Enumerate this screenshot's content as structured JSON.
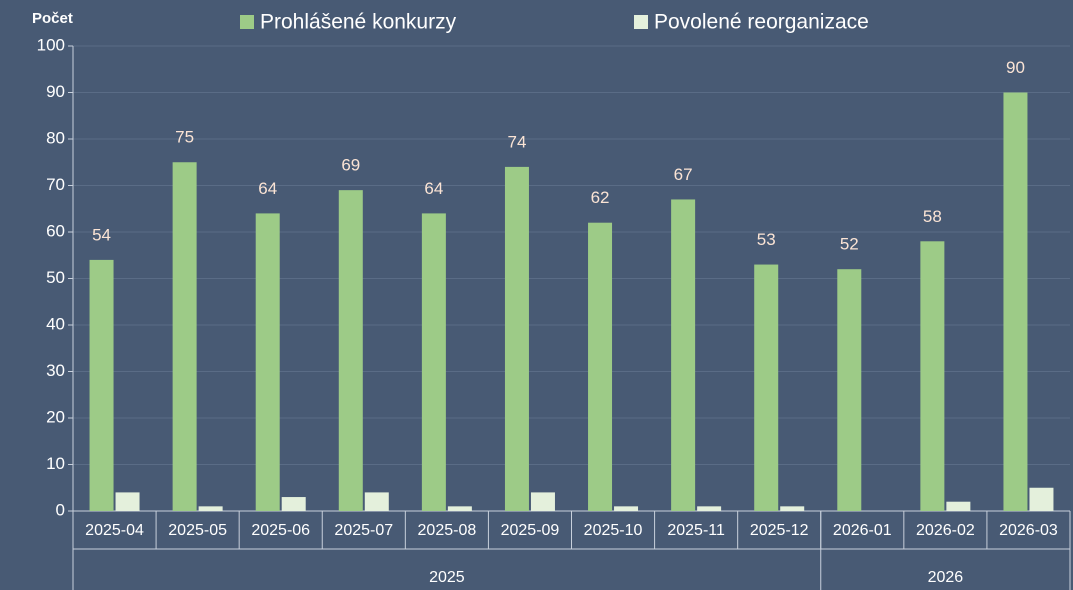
{
  "chart_data": {
    "type": "bar",
    "y_label": "Počet",
    "categories": [
      "2025-04",
      "2025-05",
      "2025-06",
      "2025-07",
      "2025-08",
      "2025-09",
      "2025-10",
      "2025-11",
      "2025-12",
      "2026-01",
      "2026-02",
      "2026-03"
    ],
    "groups": [
      {
        "label": "2025",
        "count": 9
      },
      {
        "label": "2026",
        "count": 3
      }
    ],
    "series": [
      {
        "name": "Prohlášené konkurzy",
        "color": "#9dcb87",
        "values": [
          54,
          75,
          64,
          69,
          64,
          74,
          62,
          67,
          53,
          52,
          58,
          90
        ],
        "data_labels": true
      },
      {
        "name": "Povolené reorganizace",
        "color": "#e4f0dc",
        "values": [
          4,
          1,
          3,
          4,
          1,
          4,
          1,
          1,
          1,
          0,
          2,
          5
        ],
        "data_labels": false
      }
    ],
    "ylim": [
      0,
      100
    ],
    "yticks": [
      0,
      10,
      20,
      30,
      40,
      50,
      60,
      70,
      80,
      90,
      100
    ],
    "grid": true
  }
}
